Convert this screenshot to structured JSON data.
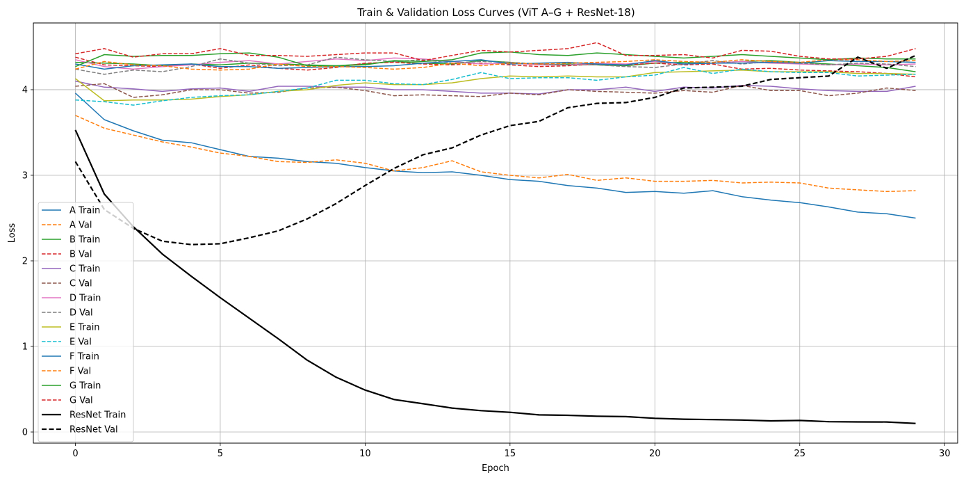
{
  "chart_data": {
    "type": "line",
    "title": "Train & Validation Loss Curves (ViT A–G + ResNet-18)",
    "xlabel": "Epoch",
    "ylabel": "Loss",
    "xlim": [
      -1.45,
      30.45
    ],
    "ylim": [
      -0.13,
      4.78
    ],
    "xticks": [
      0,
      5,
      10,
      15,
      20,
      25,
      30
    ],
    "yticks": [
      0,
      1,
      2,
      3,
      4
    ],
    "grid": true,
    "legend_position": "lower-left",
    "x": [
      0,
      1,
      2,
      3,
      4,
      5,
      6,
      7,
      8,
      9,
      10,
      11,
      12,
      13,
      14,
      15,
      16,
      17,
      18,
      19,
      20,
      21,
      22,
      23,
      24,
      25,
      26,
      27,
      28,
      29
    ],
    "series": [
      {
        "name": "A Train",
        "color": "#1f77b4",
        "dash": "solid",
        "width": 1.5,
        "values": [
          3.96,
          3.65,
          3.52,
          3.41,
          3.38,
          3.3,
          3.22,
          3.2,
          3.16,
          3.14,
          3.09,
          3.05,
          3.03,
          3.04,
          3.0,
          2.95,
          2.93,
          2.88,
          2.85,
          2.8,
          2.81,
          2.79,
          2.82,
          2.75,
          2.71,
          2.68,
          2.63,
          2.57,
          2.55,
          2.5
        ]
      },
      {
        "name": "A Val",
        "color": "#ff7f0e",
        "dash": "dashed",
        "width": 1.5,
        "values": [
          3.7,
          3.55,
          3.47,
          3.39,
          3.33,
          3.26,
          3.22,
          3.16,
          3.15,
          3.18,
          3.14,
          3.05,
          3.09,
          3.17,
          3.04,
          3.0,
          2.97,
          3.01,
          2.94,
          2.97,
          2.93,
          2.93,
          2.94,
          2.91,
          2.92,
          2.91,
          2.85,
          2.83,
          2.81,
          2.82
        ]
      },
      {
        "name": "B Train",
        "color": "#2ca02c",
        "dash": "solid",
        "width": 1.5,
        "values": [
          4.32,
          4.31,
          4.3,
          4.28,
          4.3,
          4.29,
          4.31,
          4.3,
          4.29,
          4.28,
          4.3,
          4.33,
          4.31,
          4.3,
          4.34,
          4.32,
          4.29,
          4.3,
          4.29,
          4.28,
          4.31,
          4.32,
          4.31,
          4.33,
          4.34,
          4.32,
          4.3,
          4.28,
          4.26,
          4.21
        ]
      },
      {
        "name": "B Val",
        "color": "#d62728",
        "dash": "dashed",
        "width": 1.5,
        "values": [
          4.38,
          4.29,
          4.28,
          4.27,
          4.3,
          4.25,
          4.29,
          4.25,
          4.23,
          4.26,
          4.31,
          4.32,
          4.3,
          4.29,
          4.31,
          4.29,
          4.27,
          4.28,
          4.3,
          4.29,
          4.31,
          4.29,
          4.3,
          4.24,
          4.25,
          4.23,
          4.22,
          4.21,
          4.19,
          4.15
        ]
      },
      {
        "name": "C Train",
        "color": "#9467bd",
        "dash": "solid",
        "width": 1.5,
        "values": [
          4.1,
          4.03,
          4.01,
          3.98,
          4.01,
          4.02,
          3.98,
          4.04,
          4.04,
          4.03,
          4.03,
          4.0,
          4.0,
          3.98,
          3.96,
          3.96,
          3.95,
          4.0,
          4.0,
          4.03,
          3.98,
          4.03,
          4.02,
          4.05,
          4.04,
          4.01,
          3.99,
          3.98,
          3.98,
          4.04
        ]
      },
      {
        "name": "C Val",
        "color": "#8c564b",
        "dash": "dashed",
        "width": 1.5,
        "values": [
          4.04,
          4.07,
          3.91,
          3.94,
          4.0,
          4.0,
          3.96,
          3.97,
          4.02,
          4.03,
          3.99,
          3.93,
          3.94,
          3.93,
          3.92,
          3.96,
          3.94,
          4.0,
          3.98,
          3.97,
          3.96,
          3.99,
          3.97,
          4.05,
          3.99,
          3.99,
          3.93,
          3.96,
          4.02,
          3.99
        ]
      },
      {
        "name": "D Train",
        "color": "#e377c2",
        "dash": "solid",
        "width": 1.5,
        "values": [
          4.35,
          4.27,
          4.24,
          4.27,
          4.29,
          4.32,
          4.34,
          4.3,
          4.33,
          4.36,
          4.34,
          4.37,
          4.36,
          4.33,
          4.3,
          4.31,
          4.29,
          4.29,
          4.31,
          4.3,
          4.33,
          4.3,
          4.31,
          4.33,
          4.31,
          4.3,
          4.29,
          4.3,
          4.29,
          4.3
        ]
      },
      {
        "name": "D Val",
        "color": "#7f7f7f",
        "dash": "dashed",
        "width": 1.5,
        "values": [
          4.24,
          4.18,
          4.23,
          4.21,
          4.27,
          4.36,
          4.31,
          4.28,
          4.29,
          4.38,
          4.35,
          4.33,
          4.35,
          4.31,
          4.33,
          4.32,
          4.3,
          4.29,
          4.29,
          4.27,
          4.26,
          4.3,
          4.34,
          4.3,
          4.33,
          4.31,
          4.29,
          4.31,
          4.3,
          4.27
        ]
      },
      {
        "name": "E Train",
        "color": "#bcbd22",
        "dash": "solid",
        "width": 1.5,
        "values": [
          4.13,
          3.87,
          3.88,
          3.88,
          3.89,
          3.92,
          3.94,
          3.98,
          4.0,
          4.05,
          4.08,
          4.06,
          4.06,
          4.08,
          4.13,
          4.16,
          4.15,
          4.16,
          4.15,
          4.15,
          4.2,
          4.21,
          4.22,
          4.23,
          4.21,
          4.21,
          4.21,
          4.19,
          4.19,
          4.18
        ]
      },
      {
        "name": "E Val",
        "color": "#17becf",
        "dash": "dashed",
        "width": 1.5,
        "values": [
          3.88,
          3.86,
          3.82,
          3.87,
          3.91,
          3.93,
          3.94,
          3.98,
          4.02,
          4.11,
          4.11,
          4.07,
          4.06,
          4.12,
          4.2,
          4.13,
          4.14,
          4.14,
          4.11,
          4.15,
          4.17,
          4.26,
          4.19,
          4.24,
          4.21,
          4.2,
          4.2,
          4.16,
          4.17,
          4.18
        ]
      },
      {
        "name": "F Train",
        "color": "#1f77b4",
        "dash": "solid",
        "width": 1.5,
        "values": [
          4.3,
          4.24,
          4.28,
          4.29,
          4.3,
          4.27,
          4.27,
          4.25,
          4.26,
          4.27,
          4.27,
          4.28,
          4.31,
          4.33,
          4.35,
          4.3,
          4.31,
          4.32,
          4.3,
          4.29,
          4.34,
          4.3,
          4.31,
          4.31,
          4.32,
          4.31,
          4.34,
          4.33,
          4.33,
          4.32
        ]
      },
      {
        "name": "F Val",
        "color": "#ff7f0e",
        "dash": "dashed",
        "width": 1.5,
        "values": [
          4.24,
          4.33,
          4.29,
          4.28,
          4.24,
          4.23,
          4.24,
          4.3,
          4.27,
          4.27,
          4.26,
          4.24,
          4.26,
          4.31,
          4.28,
          4.31,
          4.3,
          4.31,
          4.32,
          4.33,
          4.35,
          4.33,
          4.32,
          4.35,
          4.33,
          4.32,
          4.35,
          4.35,
          4.33,
          4.34
        ]
      },
      {
        "name": "G Train",
        "color": "#2ca02c",
        "dash": "solid",
        "width": 1.5,
        "values": [
          4.27,
          4.41,
          4.39,
          4.4,
          4.4,
          4.42,
          4.43,
          4.38,
          4.28,
          4.28,
          4.29,
          4.34,
          4.33,
          4.35,
          4.43,
          4.44,
          4.41,
          4.4,
          4.43,
          4.41,
          4.39,
          4.37,
          4.39,
          4.41,
          4.39,
          4.37,
          4.35,
          4.37,
          4.36,
          4.36
        ]
      },
      {
        "name": "G Val",
        "color": "#d62728",
        "dash": "dashed",
        "width": 1.5,
        "values": [
          4.42,
          4.48,
          4.38,
          4.42,
          4.42,
          4.48,
          4.4,
          4.4,
          4.39,
          4.41,
          4.43,
          4.43,
          4.34,
          4.4,
          4.46,
          4.44,
          4.46,
          4.48,
          4.55,
          4.4,
          4.4,
          4.41,
          4.37,
          4.46,
          4.45,
          4.39,
          4.36,
          4.36,
          4.39,
          4.48
        ]
      },
      {
        "name": "ResNet Train",
        "color": "#000000",
        "dash": "solid",
        "width": 2.2,
        "values": [
          3.53,
          2.78,
          2.4,
          2.08,
          1.82,
          1.57,
          1.33,
          1.09,
          0.84,
          0.64,
          0.49,
          0.38,
          0.33,
          0.28,
          0.25,
          0.23,
          0.2,
          0.195,
          0.185,
          0.18,
          0.16,
          0.15,
          0.145,
          0.14,
          0.13,
          0.135,
          0.12,
          0.118,
          0.117,
          0.1
        ]
      },
      {
        "name": "ResNet Val",
        "color": "#000000",
        "dash": "dashed",
        "width": 2.2,
        "values": [
          3.16,
          2.6,
          2.38,
          2.23,
          2.19,
          2.2,
          2.27,
          2.35,
          2.49,
          2.67,
          2.88,
          3.08,
          3.24,
          3.32,
          3.47,
          3.58,
          3.63,
          3.79,
          3.84,
          3.85,
          3.91,
          4.02,
          4.03,
          4.04,
          4.12,
          4.14,
          4.16,
          4.38,
          4.25,
          4.4
        ]
      }
    ]
  }
}
